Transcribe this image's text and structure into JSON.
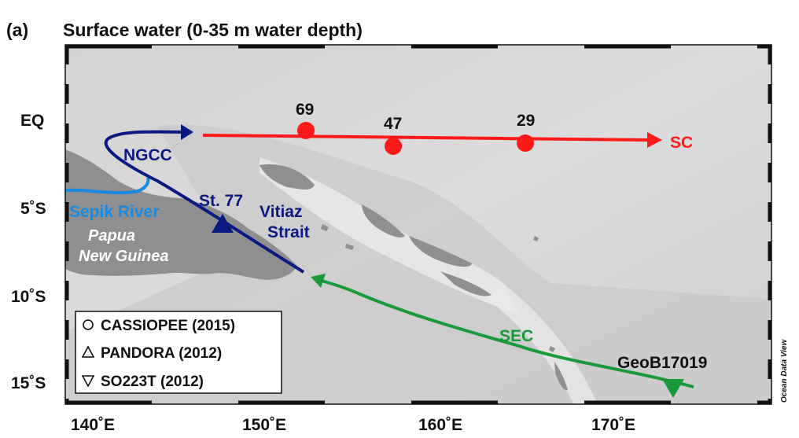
{
  "panel_label": "(a)",
  "title": "Surface water (0-35 m water depth)",
  "axes": {
    "lon_ticks": [
      "140˚E",
      "150˚E",
      "160˚E",
      "170˚E"
    ],
    "lat_ticks": [
      "EQ",
      "5˚S",
      "10˚S",
      "15˚S"
    ]
  },
  "stations": [
    {
      "id": "69",
      "label": "69"
    },
    {
      "id": "47",
      "label": "47"
    },
    {
      "id": "29",
      "label": "29"
    }
  ],
  "currents": {
    "sc": {
      "label": "SC",
      "color": "#ff1a1a"
    },
    "ngcc": {
      "label": "NGCC",
      "color": "#0a1a80"
    },
    "sec": {
      "label": "SEC",
      "color": "#1a9a3a"
    },
    "sepik": {
      "label": "Sepik River",
      "color": "#1a8ae0"
    }
  },
  "places": {
    "st77": "St. 77",
    "vitiaz_line1": "Vitiaz",
    "vitiaz_line2": "Strait",
    "png_line1": "Papua",
    "png_line2": "New Guinea",
    "geob": "GeoB17019"
  },
  "legend": [
    {
      "symbol": "circle",
      "label": "CASSIOPEE (2015)"
    },
    {
      "symbol": "triangle-up",
      "label": "PANDORA (2012)"
    },
    {
      "symbol": "triangle-down",
      "label": "SO223T (2012)"
    }
  ],
  "credit": "Ocean Data View"
}
